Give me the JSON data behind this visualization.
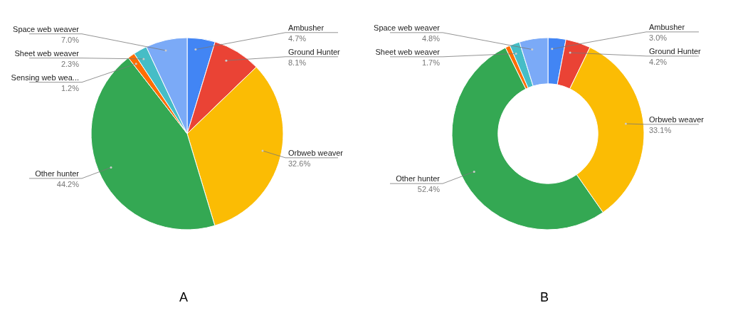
{
  "chart_data": [
    {
      "type": "pie",
      "title": "A",
      "categories": [
        "Ambusher",
        "Ground Hunter",
        "Orbweb weaver",
        "Other hunter",
        "Sensing web wea...",
        "Sheet web weaver",
        "Space web weaver"
      ],
      "values": [
        4.7,
        8.1,
        32.6,
        44.2,
        1.2,
        2.3,
        7.0
      ],
      "colors": [
        "#4285f4",
        "#ea4335",
        "#fbbc04",
        "#34a853",
        "#ff6d01",
        "#46bdc6",
        "#7baaf7"
      ],
      "value_labels": [
        "4.7%",
        "8.1%",
        "32.6%",
        "44.2%",
        "1.2%",
        "2.3%",
        "7.0%"
      ]
    },
    {
      "type": "donut",
      "title": "B",
      "categories": [
        "Ambusher",
        "Ground Hunter",
        "Orbweb weaver",
        "Other hunter",
        null,
        "Sheet web weaver",
        "Space web weaver"
      ],
      "values": [
        3.0,
        4.2,
        33.1,
        52.4,
        0.8,
        1.7,
        4.8
      ],
      "colors": [
        "#4285f4",
        "#ea4335",
        "#fbbc04",
        "#34a853",
        "#ff6d01",
        "#46bdc6",
        "#7baaf7"
      ],
      "value_labels": [
        "3.0%",
        "4.2%",
        "33.1%",
        "52.4%",
        null,
        "1.7%",
        "4.8%"
      ]
    }
  ]
}
